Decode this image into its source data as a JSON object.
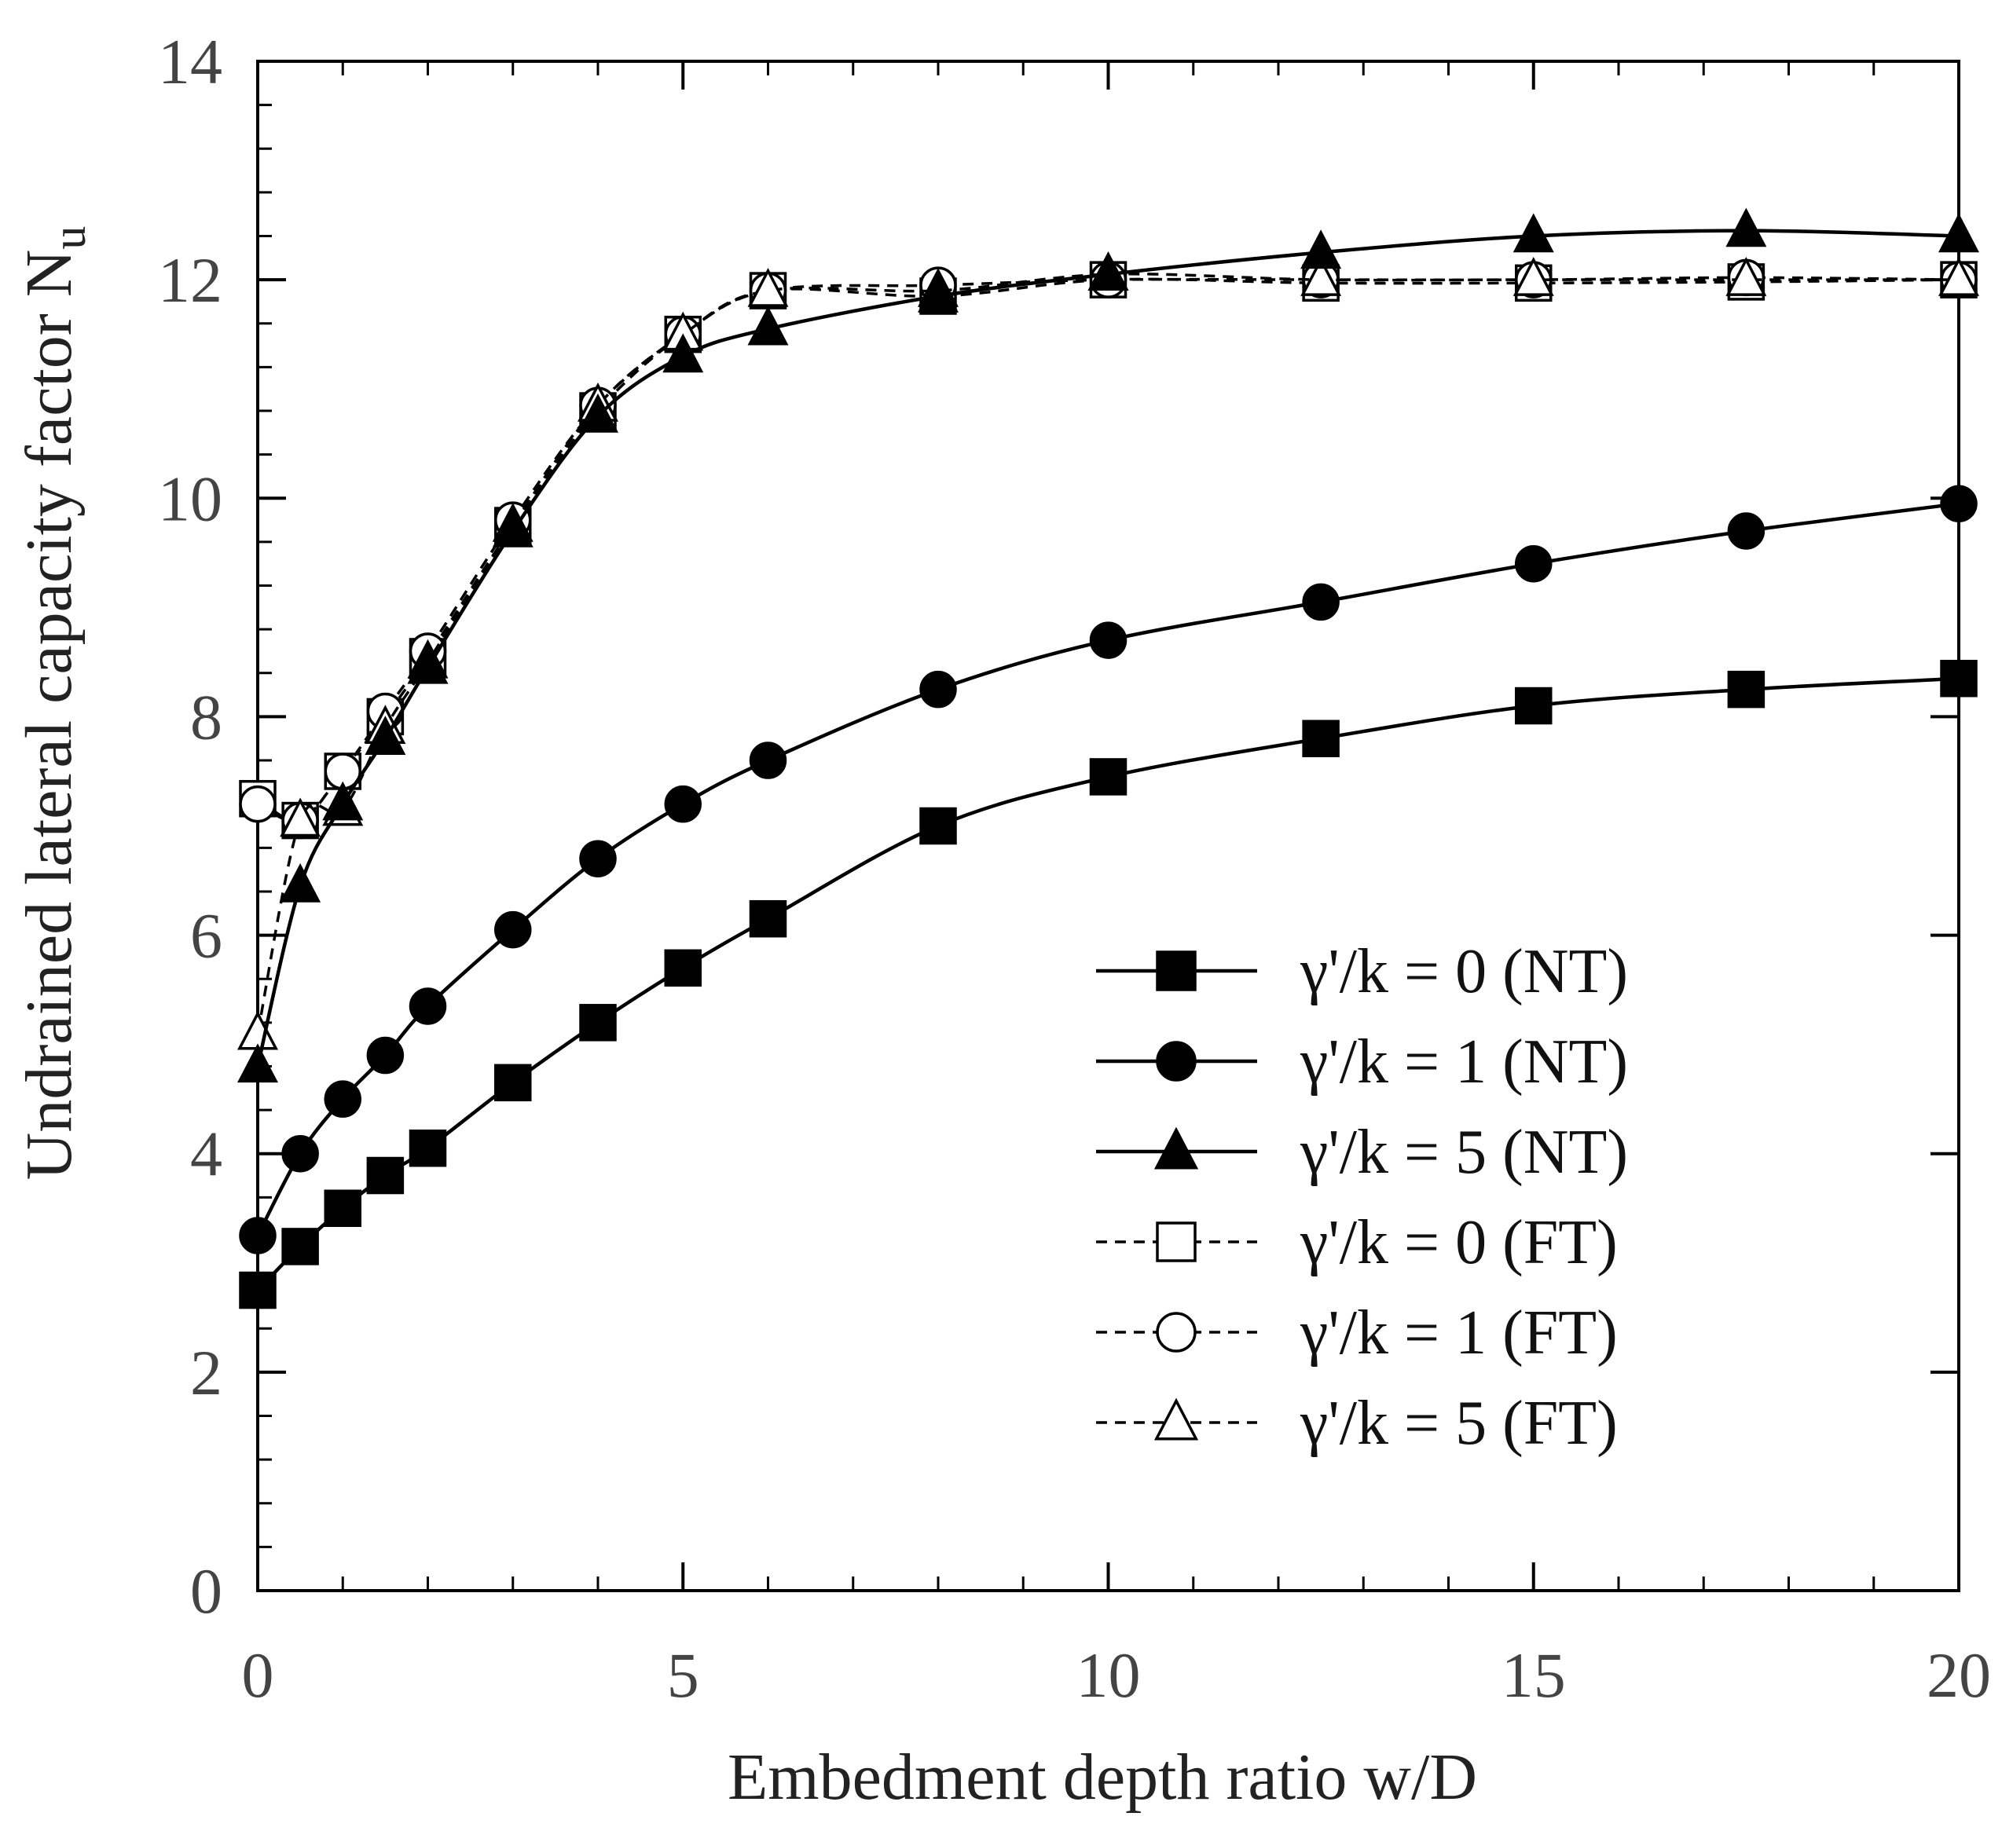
{
  "chart_data": {
    "type": "line",
    "title": "",
    "xlabel": "Embedment depth ratio w/D",
    "ylabel": "Undrained lateral capacity factor N",
    "ylabel_subscript": "u",
    "xlim": [
      0,
      20
    ],
    "ylim": [
      0,
      14
    ],
    "x_ticks": [
      0,
      5,
      10,
      15,
      20
    ],
    "y_ticks": [
      0,
      2,
      4,
      6,
      8,
      10,
      12,
      14
    ],
    "x_tick_labels": [
      "0",
      "5",
      "10",
      "15",
      "20"
    ],
    "y_tick_labels": [
      "0",
      "2",
      "4",
      "6",
      "8",
      "10",
      "12",
      "14"
    ],
    "x_minor_step": 1,
    "y_minor_step": 0.4,
    "grid": false,
    "legend_position": "lower-right",
    "series": [
      {
        "name": "γ'/k = 0 (NT)",
        "marker": "square",
        "filled": true,
        "line": "solid",
        "x": [
          0,
          0.5,
          1,
          1.5,
          2,
          3,
          4,
          5,
          6,
          8,
          10,
          12.5,
          15,
          17.5,
          20
        ],
        "y": [
          2.75,
          3.15,
          3.5,
          3.8,
          4.05,
          4.65,
          5.2,
          5.7,
          6.15,
          7.0,
          7.45,
          7.8,
          8.1,
          8.25,
          8.35
        ]
      },
      {
        "name": "γ'/k = 1 (NT)",
        "marker": "circle",
        "filled": true,
        "line": "solid",
        "x": [
          0,
          0.5,
          1,
          1.5,
          2,
          3,
          4,
          5,
          6,
          8,
          10,
          12.5,
          15,
          17.5,
          20
        ],
        "y": [
          3.25,
          4.0,
          4.5,
          4.9,
          5.35,
          6.05,
          6.7,
          7.2,
          7.6,
          8.25,
          8.7,
          9.05,
          9.4,
          9.7,
          9.95
        ]
      },
      {
        "name": "γ'/k = 5 (NT)",
        "marker": "triangle",
        "filled": true,
        "line": "solid",
        "x": [
          0,
          0.5,
          1,
          1.5,
          2,
          3,
          4,
          5,
          6,
          8,
          10,
          12.5,
          15,
          17.5,
          20
        ],
        "y": [
          4.8,
          6.45,
          7.2,
          7.8,
          8.45,
          9.7,
          10.75,
          11.3,
          11.55,
          11.85,
          12.05,
          12.25,
          12.4,
          12.45,
          12.4
        ]
      },
      {
        "name": "γ'/k = 0 (FT)",
        "marker": "square",
        "filled": false,
        "line": "dashed",
        "x": [
          0,
          0.5,
          1,
          1.5,
          2,
          3,
          4,
          5,
          6,
          8,
          10,
          12.5,
          15,
          17.5,
          20
        ],
        "y": [
          7.25,
          7.05,
          7.5,
          8.0,
          8.55,
          9.75,
          10.8,
          11.5,
          11.9,
          11.85,
          12.0,
          11.97,
          11.97,
          11.98,
          12.0
        ]
      },
      {
        "name": "γ'/k = 1 (FT)",
        "marker": "circle",
        "filled": false,
        "line": "dashed",
        "x": [
          0,
          0.5,
          1,
          1.5,
          2,
          3,
          4,
          5,
          6,
          8,
          10,
          12.5,
          15,
          17.5,
          20
        ],
        "y": [
          7.2,
          7.05,
          7.5,
          8.05,
          8.6,
          9.8,
          10.85,
          11.5,
          11.9,
          11.95,
          12.0,
          12.0,
          12.0,
          12.02,
          12.0
        ]
      },
      {
        "name": "γ'/k = 5 (FT)",
        "marker": "triangle",
        "filled": false,
        "line": "dashed",
        "x": [
          0,
          0.5,
          1,
          1.5,
          2,
          3,
          4,
          5,
          6,
          8,
          10,
          12.5,
          15,
          17.5,
          20
        ],
        "y": [
          5.1,
          7.05,
          7.15,
          7.9,
          8.5,
          9.75,
          10.85,
          11.5,
          11.9,
          11.9,
          12.05,
          12.0,
          12.0,
          12.0,
          12.0
        ]
      }
    ]
  }
}
